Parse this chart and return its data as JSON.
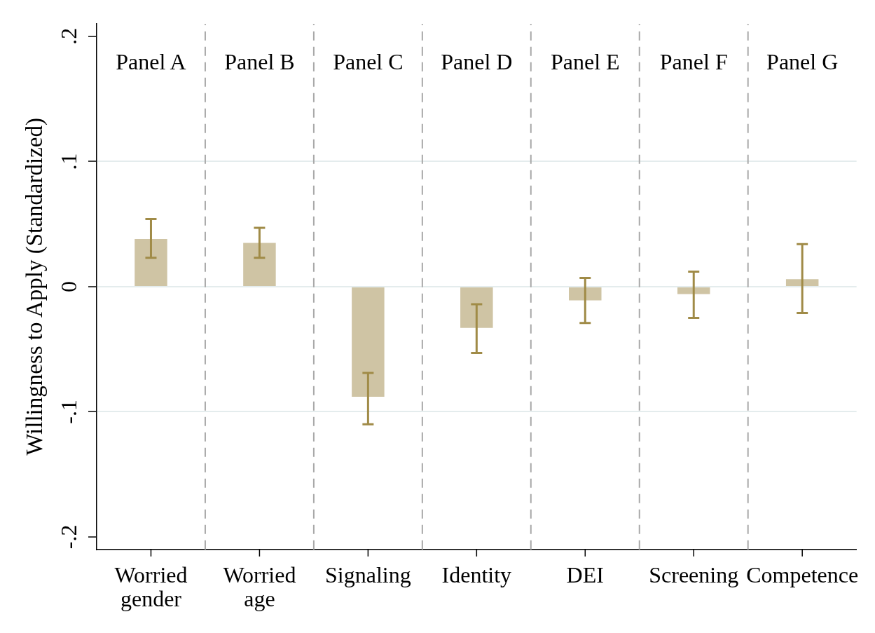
{
  "chart_data": {
    "type": "bar",
    "ylabel": "Willingness to Apply (Standardized)",
    "categories": [
      "Worried gender",
      "Worried age",
      "Signaling",
      "Identity",
      "DEI",
      "Screening",
      "Competence"
    ],
    "values": [
      0.038,
      0.035,
      -0.088,
      -0.033,
      -0.011,
      -0.006,
      0.006
    ],
    "errors": [
      [
        0.023,
        0.054
      ],
      [
        0.023,
        0.047
      ],
      [
        -0.11,
        -0.069
      ],
      [
        -0.053,
        -0.014
      ],
      [
        -0.029,
        0.007
      ],
      [
        -0.025,
        0.012
      ],
      [
        -0.021,
        0.034
      ]
    ],
    "color": "#cfc4a4",
    "ylim": [
      -0.21,
      0.21
    ],
    "yticks": [
      {
        "value": -0.2,
        "label": "-.2"
      },
      {
        "value": -0.1,
        "label": "-.1"
      },
      0,
      {
        "value": 0.1,
        "label": ".1"
      },
      {
        "value": 0.2,
        "label": ".2"
      }
    ],
    "annotations": [
      "Panel A",
      "Panel B",
      "Panel C",
      "Panel D",
      "Panel E",
      "Panel F",
      "Panel G"
    ],
    "grid": true,
    "legend": false
  }
}
